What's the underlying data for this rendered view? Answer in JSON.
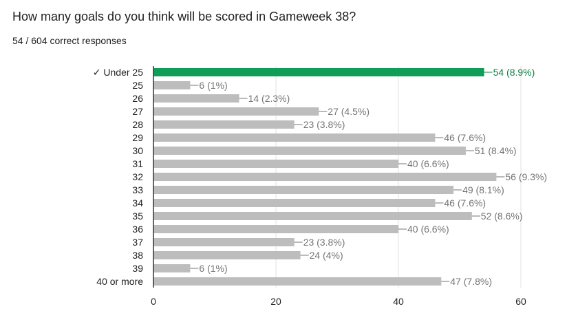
{
  "question": {
    "title": "How many goals do you think will be scored in Gameweek 38?",
    "summary": "54 / 604 correct responses"
  },
  "colors": {
    "correct_bar": "#0f9d58",
    "correct_label": "#0b8043",
    "bar": "#bdbdbd",
    "value_label": "#757575",
    "axis": "#333333",
    "grid": "#e0e0e0"
  },
  "chart_data": {
    "type": "bar",
    "orientation": "horizontal",
    "categories": [
      "✓ Under 25",
      "25",
      "26",
      "27",
      "28",
      "29",
      "30",
      "31",
      "32",
      "33",
      "34",
      "35",
      "36",
      "37",
      "38",
      "39",
      "40 or more"
    ],
    "values": [
      54,
      6,
      14,
      27,
      23,
      46,
      51,
      40,
      56,
      49,
      46,
      52,
      40,
      23,
      24,
      6,
      47
    ],
    "data_labels": [
      "54 (8.9%)",
      "6 (1%)",
      "14 (2.3%)",
      "27 (4.5%)",
      "23 (3.8%)",
      "46 (7.6%)",
      "51 (8.4%)",
      "40 (6.6%)",
      "56 (9.3%)",
      "49 (8.1%)",
      "46 (7.6%)",
      "52 (8.6%)",
      "40 (6.6%)",
      "23 (3.8%)",
      "24 (4%)",
      "6 (1%)",
      "47 (7.8%)"
    ],
    "correct_index": 0,
    "xlim": [
      0,
      60
    ],
    "xticks": [
      0,
      20,
      40,
      60
    ],
    "xtick_labels": [
      "0",
      "20",
      "40",
      "60"
    ],
    "grid": true
  }
}
